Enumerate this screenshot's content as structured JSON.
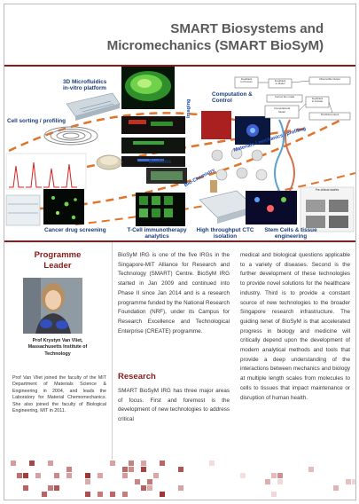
{
  "header": {
    "title_line1": "SMART Biosystems and",
    "title_line2": "Micromechanics (SMART BioSyM)"
  },
  "collage": {
    "labels": {
      "microfluidics": "3D Microfluidics\nin-vitro platform",
      "cell_sorting": "Cell sorting / profiling",
      "imaging": "Imaging",
      "computation": "Computation &\nControl",
      "materials": "Materials / mechanics / profiling",
      "biofilms": "Biofilms",
      "bio_chemistry": "Bio-Chemistry",
      "cancer": "Cancer drug screening",
      "tcell": "T-Cell immunotherapy\nanalytics",
      "ctc": "High throughput CTC\nisolation",
      "stem": "Stem Cells & tissue\nengineering"
    },
    "diagram_boxes": {
      "feedback1": "Feedback\nto Process",
      "feedback2": "Feedback\nto Model",
      "observable": "Observable Output",
      "correct": "Correct the model",
      "computational": "Computational\nModel",
      "feedback3": "Feedback\nto Actuate",
      "predicted": "Predicted output"
    },
    "misc": {
      "preclinical": "Pre-clinical studies"
    },
    "colors": {
      "label_blue": "#1a3d7a",
      "accent_red": "#8b1a1a"
    }
  },
  "leader": {
    "heading_line1": "Programme",
    "heading_line2": "Leader",
    "caption_line1": "Prof Krystyn Van Vliet,",
    "caption_line2": "Massachusetts Institute of",
    "caption_line3": "Technology",
    "bio": "Prof Van Vliet joined the faculty of the MIT Department of Materials Science & Engineering in 2004, and leads the Laboratory for Material Chemomechanics. She also joined the faculty of Biological Engineering, MIT in 2011."
  },
  "content": {
    "intro": "BioSyM IRG is one of the five IRGs in the Singapore-MIT Alliance for Research and Technology (SMART) Centre. BioSyM IRG started in Jan 2009 and continued into Phase II since Jan 2014 and is a research programme funded by the National Research Foundation (NRF), under its Campus for Research Excellence and Technological Enterprise (CREATE) programme.",
    "research_heading": "Research",
    "research_p1": "SMART BioSyM IRG has three major areas of focus. First and foremost is the development of new technologies to address critical",
    "research_p2": "medical and biological questions applicable to a variety of diseases. Second is the further development of these technologies to provide novel solutions for the healthcare industry. Third is to provide a constant source of new technologies to the broader Singapore research infrastructure. The guiding tenet of BioSyM is that accelerated progress in biology and medicine will critically depend upon the development of modern analytical methods and tools that provide a deep understanding of the interactions between mechanics and biology at multiple length scales from molecules to cells to tissues that impact maintenance or disruption of human health."
  }
}
